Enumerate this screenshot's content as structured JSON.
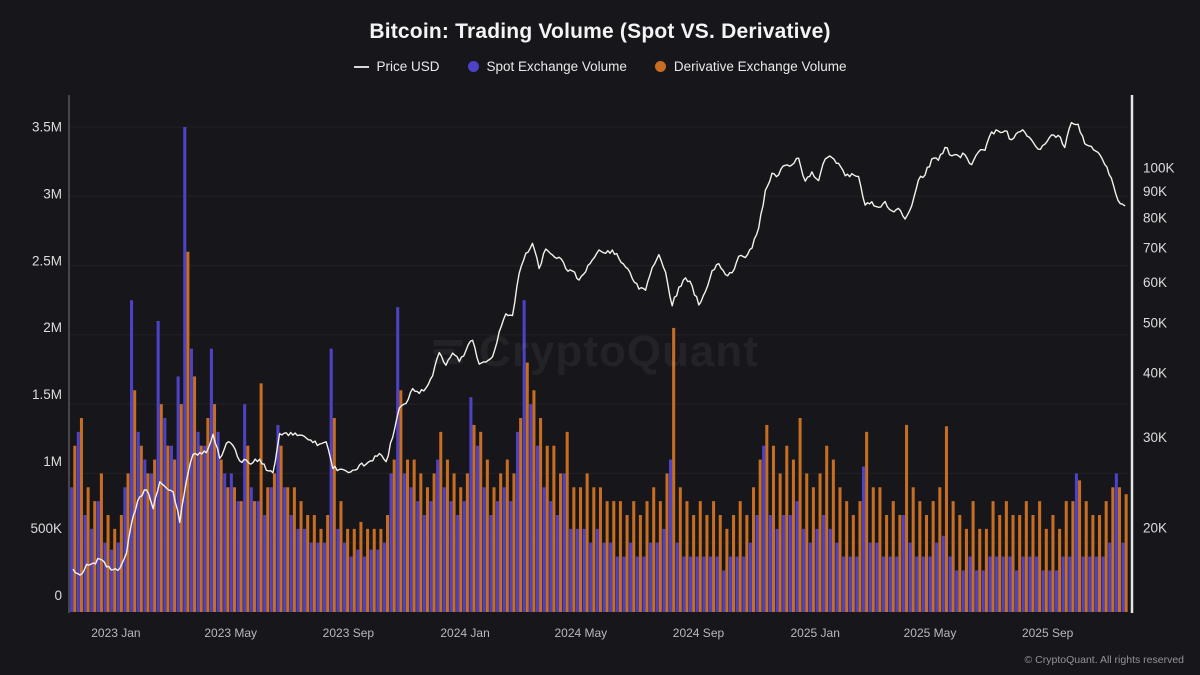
{
  "header": {
    "title": "Bitcoin: Trading Volume (Spot VS. Derivative)"
  },
  "legend": {
    "price_label": "Price USD",
    "spot_label": "Spot Exchange Volume",
    "derivative_label": "Derivative Exchange Volume"
  },
  "watermark": {
    "text": "CryptoQuant"
  },
  "footer": {
    "copyright": "© CryptoQuant. All rights reserved"
  },
  "colors": {
    "background": "#17171b",
    "price_line": "#f4f1ea",
    "spot_bar": "#4e43c8",
    "derivative_bar": "#c76e22",
    "left_axis_line": "#46464c",
    "right_axis_line": "#e6e6e8",
    "grid_line": "rgba(255,255,255,0.05)",
    "tick_label": "#dcdcde",
    "x_label": "#b9b9bd"
  },
  "chart_data": {
    "type": "mixed",
    "title": "Bitcoin: Trading Volume (Spot VS. Derivative)",
    "x": {
      "start_date": "2022-11-14",
      "end_date": "2025-11-24",
      "interval": "weekly",
      "ticks": [
        {
          "date": "2023-01-01",
          "label": "2023 Jan"
        },
        {
          "date": "2023-05-01",
          "label": "2023 May"
        },
        {
          "date": "2023-09-01",
          "label": "2023 Sep"
        },
        {
          "date": "2024-01-01",
          "label": "2024 Jan"
        },
        {
          "date": "2024-05-01",
          "label": "2024 May"
        },
        {
          "date": "2024-09-01",
          "label": "2024 Sep"
        },
        {
          "date": "2025-01-01",
          "label": "2025 Jan"
        },
        {
          "date": "2025-05-01",
          "label": "2025 May"
        },
        {
          "date": "2025-09-01",
          "label": "2025 Sep"
        }
      ]
    },
    "left_axis": {
      "scale": "linear",
      "min": 0,
      "max": 3500000,
      "unit": "volume",
      "ticks": [
        {
          "value": 3.5,
          "label": "3.5M"
        },
        {
          "value": 3.0,
          "label": "3M"
        },
        {
          "value": 2.5,
          "label": "2.5M"
        },
        {
          "value": 2.0,
          "label": "2M"
        },
        {
          "value": 1.5,
          "label": "1.5M"
        },
        {
          "value": 1.0,
          "label": "1M"
        },
        {
          "value": 0.5,
          "label": "500K"
        },
        {
          "value": 0.0,
          "label": "0"
        }
      ]
    },
    "right_axis": {
      "scale": "log",
      "unit": "USD",
      "ticks": [
        {
          "value": 100,
          "label": "100K"
        },
        {
          "value": 90,
          "label": "90K"
        },
        {
          "value": 80,
          "label": "80K"
        },
        {
          "value": 70,
          "label": "70K"
        },
        {
          "value": 60,
          "label": "60K"
        },
        {
          "value": 50,
          "label": "50K"
        },
        {
          "value": 40,
          "label": "40K"
        },
        {
          "value": 30,
          "label": "30K"
        },
        {
          "value": 20,
          "label": "20K"
        }
      ]
    },
    "series": [
      {
        "name": "Price USD",
        "type": "line",
        "axis": "right",
        "unit": "thousand USD",
        "color": "#f4f1ea",
        "values": [
          16.6,
          16.2,
          17.0,
          17.1,
          17.4,
          16.8,
          16.6,
          16.7,
          17.9,
          21.1,
          23.0,
          23.7,
          21.8,
          24.6,
          23.9,
          23.5,
          20.5,
          24.7,
          27.8,
          28.0,
          28.0,
          30.4,
          27.3,
          29.2,
          28.9,
          27.0,
          27.1,
          26.8,
          27.2,
          25.9,
          25.6,
          30.5,
          30.6,
          30.3,
          30.3,
          29.9,
          29.3,
          29.1,
          29.4,
          26.1,
          26.0,
          25.8,
          25.9,
          26.5,
          26.6,
          27.0,
          27.9,
          26.9,
          30.0,
          34.2,
          34.9,
          37.3,
          36.5,
          37.4,
          39.5,
          43.8,
          41.4,
          43.7,
          42.1,
          44.2,
          46.3,
          41.6,
          42.0,
          43.0,
          48.1,
          52.1,
          51.7,
          62.4,
          68.3,
          71.4,
          63.8,
          69.6,
          67.8,
          67.1,
          63.8,
          63.1,
          60.6,
          62.9,
          66.3,
          69.3,
          68.3,
          69.3,
          66.7,
          64.2,
          61.0,
          58.2,
          57.9,
          64.1,
          67.9,
          62.8,
          54.0,
          58.7,
          61.2,
          59.0,
          54.2,
          57.6,
          63.2,
          65.2,
          62.1,
          62.6,
          67.4,
          67.0,
          69.9,
          76.5,
          90.5,
          97.7,
          97.0,
          101.2,
          101.4,
          104.5,
          94.3,
          98.3,
          94.5,
          104.1,
          104.8,
          102.1,
          96.6,
          97.5,
          96.3,
          84.7,
          86.0,
          83.9,
          86.1,
          82.6,
          83.5,
          79.6,
          84.5,
          94.7,
          96.9,
          104.1,
          103.5,
          109.6,
          105.6,
          105.7,
          106.1,
          101.5,
          107.3,
          108.2,
          117.5,
          118.0,
          118.1,
          113.5,
          117.4,
          117.3,
          113.4,
          108.8,
          111.2,
          115.9,
          115.7,
          109.6,
          122.5,
          121.6,
          111.5,
          110.1,
          107.2,
          101.6,
          95.6,
          86.5,
          84.5
        ]
      },
      {
        "name": "Spot Exchange Volume",
        "type": "bar",
        "axis": "left",
        "unit": "million",
        "color": "#4e43c8",
        "values": [
          0.9,
          1.3,
          0.7,
          0.6,
          0.8,
          0.5,
          0.45,
          0.5,
          0.9,
          2.25,
          1.3,
          1.1,
          1.0,
          2.1,
          1.4,
          1.2,
          1.7,
          3.5,
          1.9,
          1.3,
          1.2,
          1.9,
          1.3,
          1.0,
          1.0,
          0.8,
          1.5,
          0.9,
          0.8,
          0.7,
          0.9,
          1.35,
          0.9,
          0.7,
          0.6,
          0.6,
          0.5,
          0.5,
          0.5,
          1.9,
          0.6,
          0.5,
          0.4,
          0.45,
          0.4,
          0.45,
          0.45,
          0.5,
          1.0,
          2.2,
          1.0,
          0.9,
          0.8,
          0.7,
          0.8,
          1.1,
          0.9,
          0.8,
          0.7,
          0.8,
          1.55,
          1.2,
          0.9,
          0.7,
          0.8,
          0.9,
          0.8,
          1.3,
          2.25,
          1.5,
          1.2,
          0.9,
          0.8,
          0.7,
          1.0,
          0.6,
          0.6,
          0.6,
          0.5,
          0.6,
          0.5,
          0.5,
          0.4,
          0.4,
          0.5,
          0.4,
          0.4,
          0.5,
          0.5,
          0.6,
          1.1,
          0.5,
          0.4,
          0.4,
          0.4,
          0.4,
          0.4,
          0.4,
          0.3,
          0.4,
          0.4,
          0.4,
          0.5,
          0.7,
          1.2,
          0.7,
          0.6,
          0.7,
          0.7,
          0.8,
          0.6,
          0.5,
          0.6,
          0.7,
          0.6,
          0.5,
          0.4,
          0.4,
          0.4,
          1.05,
          0.5,
          0.5,
          0.4,
          0.4,
          0.4,
          0.7,
          0.5,
          0.4,
          0.4,
          0.4,
          0.5,
          0.55,
          0.4,
          0.3,
          0.3,
          0.4,
          0.3,
          0.3,
          0.4,
          0.4,
          0.4,
          0.4,
          0.3,
          0.4,
          0.4,
          0.4,
          0.3,
          0.3,
          0.3,
          0.4,
          0.4,
          1.0,
          0.4,
          0.4,
          0.4,
          0.4,
          0.5,
          1.0,
          0.5
        ]
      },
      {
        "name": "Derivative Exchange Volume",
        "type": "bar",
        "axis": "left",
        "unit": "million",
        "color": "#c76e22",
        "values": [
          1.2,
          1.4,
          0.9,
          0.8,
          1.0,
          0.7,
          0.6,
          0.7,
          1.0,
          1.6,
          1.2,
          1.0,
          1.1,
          1.5,
          1.2,
          1.1,
          1.5,
          2.6,
          1.7,
          1.2,
          1.4,
          1.5,
          1.1,
          0.9,
          0.9,
          0.8,
          1.2,
          0.8,
          1.65,
          0.9,
          1.0,
          1.2,
          0.9,
          0.9,
          0.8,
          0.7,
          0.7,
          0.6,
          0.7,
          1.4,
          0.8,
          0.6,
          0.6,
          0.65,
          0.6,
          0.6,
          0.6,
          0.7,
          1.1,
          1.6,
          1.1,
          1.1,
          1.0,
          0.9,
          1.0,
          1.3,
          1.1,
          1.0,
          0.9,
          1.0,
          1.35,
          1.3,
          1.1,
          0.9,
          1.0,
          1.1,
          1.0,
          1.4,
          1.8,
          1.6,
          1.4,
          1.2,
          1.2,
          1.0,
          1.3,
          0.9,
          0.9,
          1.0,
          0.9,
          0.9,
          0.8,
          0.8,
          0.8,
          0.7,
          0.8,
          0.7,
          0.8,
          0.9,
          0.8,
          1.0,
          2.05,
          0.9,
          0.8,
          0.7,
          0.8,
          0.7,
          0.8,
          0.7,
          0.6,
          0.7,
          0.8,
          0.7,
          0.9,
          1.1,
          1.35,
          1.2,
          1.0,
          1.2,
          1.1,
          1.4,
          1.0,
          0.9,
          1.0,
          1.2,
          1.1,
          0.9,
          0.8,
          0.7,
          0.8,
          1.3,
          0.9,
          0.9,
          0.7,
          0.8,
          0.7,
          1.35,
          0.9,
          0.8,
          0.7,
          0.8,
          0.9,
          1.34,
          0.8,
          0.7,
          0.6,
          0.8,
          0.6,
          0.6,
          0.8,
          0.7,
          0.8,
          0.7,
          0.7,
          0.8,
          0.7,
          0.8,
          0.6,
          0.7,
          0.6,
          0.8,
          0.8,
          0.95,
          0.8,
          0.7,
          0.7,
          0.8,
          0.9,
          0.9,
          0.85
        ]
      }
    ]
  }
}
